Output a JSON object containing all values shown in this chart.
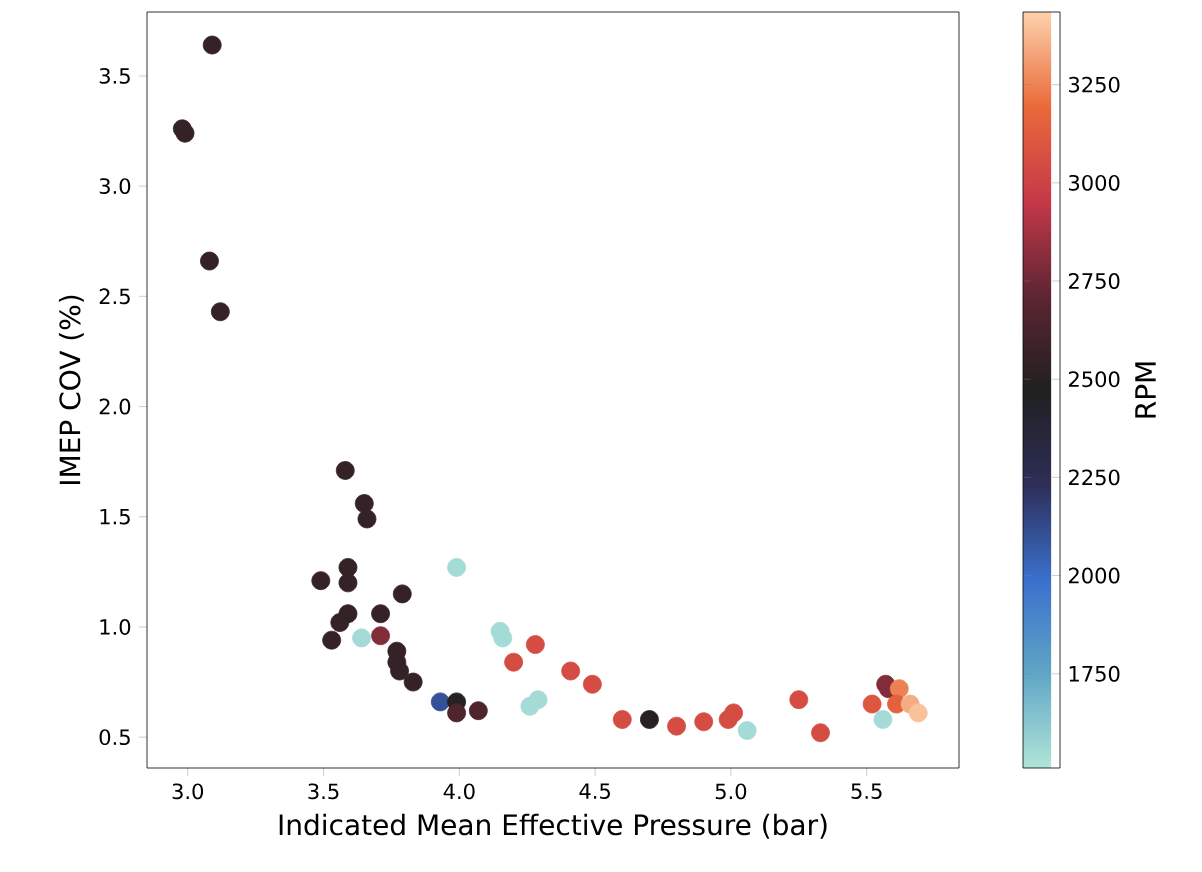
{
  "chart_data": {
    "type": "scatter",
    "xlabel": "Indicated Mean Effective Pressure (bar)",
    "ylabel": "IMEP COV (%)",
    "clabel": "RPM",
    "marker": "circle",
    "x": [
      3.09,
      2.98,
      2.99,
      3.08,
      3.12,
      3.58,
      3.65,
      3.66,
      3.59,
      3.49,
      3.59,
      3.99,
      3.79,
      3.59,
      3.56,
      3.71,
      3.53,
      3.64,
      3.71,
      3.77,
      3.77,
      3.78,
      3.83,
      3.93,
      3.99,
      3.99,
      4.07,
      4.15,
      4.16,
      4.28,
      4.2,
      4.41,
      4.49,
      4.26,
      4.29,
      4.6,
      4.7,
      4.8,
      4.9,
      4.99,
      5.01,
      5.06,
      5.25,
      5.33,
      5.52,
      5.56,
      5.57,
      5.58,
      5.62,
      5.61,
      5.66,
      5.69
    ],
    "values": [
      3.64,
      3.26,
      3.24,
      2.66,
      2.43,
      1.71,
      1.56,
      1.49,
      1.27,
      1.21,
      1.2,
      1.27,
      1.15,
      1.06,
      1.02,
      1.06,
      0.94,
      0.95,
      0.96,
      0.89,
      0.84,
      0.8,
      0.75,
      0.66,
      0.66,
      0.61,
      0.62,
      0.98,
      0.95,
      0.92,
      0.84,
      0.8,
      0.74,
      0.64,
      0.67,
      0.58,
      0.58,
      0.55,
      0.57,
      0.58,
      0.61,
      0.53,
      0.67,
      0.52,
      0.65,
      0.58,
      0.74,
      0.72,
      0.72,
      0.65,
      0.65,
      0.61
    ],
    "cvalues": [
      2550,
      2550,
      2550,
      2550,
      2550,
      2550,
      2550,
      2550,
      2550,
      2550,
      2550,
      1550,
      2550,
      2550,
      2550,
      2550,
      2550,
      1550,
      2800,
      2550,
      2550,
      2550,
      2550,
      2100,
      2500,
      2650,
      2650,
      1550,
      1550,
      3050,
      3050,
      3050,
      3050,
      1550,
      1550,
      3050,
      2500,
      3050,
      3050,
      3050,
      3050,
      1550,
      3050,
      3050,
      3100,
      1550,
      2800,
      2800,
      3250,
      3150,
      3350,
      3400
    ],
    "xlim": [
      2.85,
      5.84
    ],
    "ylim": [
      0.36,
      3.79
    ],
    "xticks": [
      {
        "value": 3,
        "label": "3.0"
      },
      {
        "value": 3.5,
        "label": "3.5"
      },
      {
        "value": 4,
        "label": "4.0"
      },
      {
        "value": 4.5,
        "label": "4.5"
      },
      {
        "value": 5,
        "label": "5.0"
      },
      {
        "value": 5.5,
        "label": "5.5"
      }
    ],
    "yticks": [
      {
        "value": 0.5,
        "label": "0.5"
      },
      {
        "value": 1,
        "label": "1.0"
      },
      {
        "value": 1.5,
        "label": "1.5"
      },
      {
        "value": 2,
        "label": "2.0"
      },
      {
        "value": 2.5,
        "label": "2.5"
      },
      {
        "value": 3,
        "label": "3.0"
      },
      {
        "value": 3.5,
        "label": "3.5"
      }
    ],
    "clim": [
      1510,
      3435
    ],
    "cticks": [
      1750,
      2000,
      2250,
      2500,
      2750,
      3000,
      3250
    ],
    "grid": false
  }
}
